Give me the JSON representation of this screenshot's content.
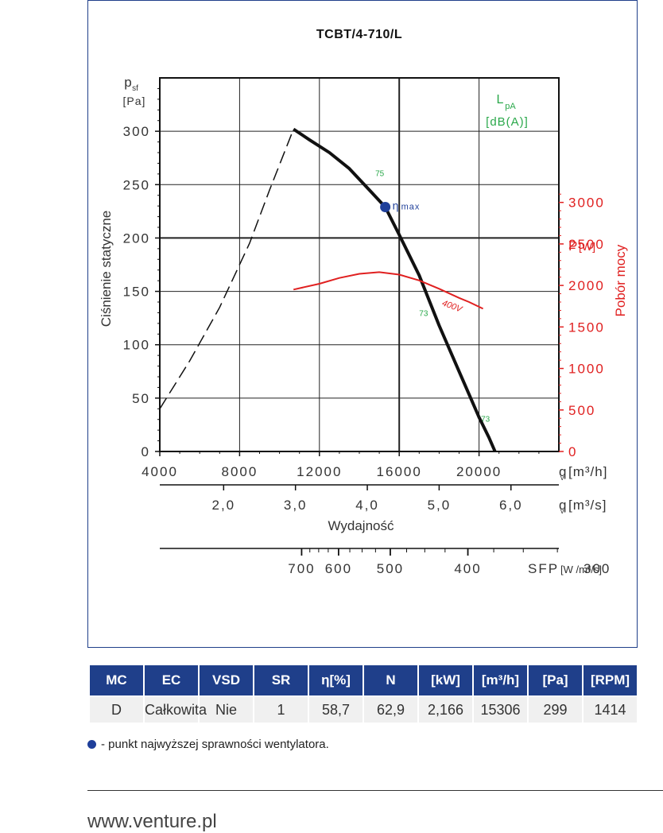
{
  "chart_data": {
    "type": "line",
    "title": "TCBT/4-710/L",
    "ylabel": "Ciśnienie statyczne",
    "y_symbol": "p",
    "y_symbol_sub": "sf",
    "y_unit": "[Pa]",
    "ylim": [
      0,
      350
    ],
    "y_ticks": [
      0,
      50,
      100,
      150,
      200,
      250,
      300
    ],
    "y_tick_labels": [
      "0",
      "50",
      "100",
      "150",
      "200",
      "250",
      "300"
    ],
    "xlim": [
      4000,
      24000
    ],
    "x_ticks": [
      4000,
      8000,
      12000,
      16000,
      20000
    ],
    "x_tick_labels": [
      "4000",
      "8000",
      "12000",
      "16000",
      "20000"
    ],
    "x_unit_symbol": "q",
    "x_unit_sub": "v",
    "x_unit": "[m³/h]",
    "x2_ticks": [
      2.0,
      3.0,
      4.0,
      5.0,
      6.0
    ],
    "x2_tick_labels": [
      "2,0",
      "3,0",
      "4,0",
      "5,0",
      "6,0"
    ],
    "x2_unit": "[m³/s]",
    "xlabel": "Wydajność",
    "sfp_ticks": [
      700,
      600,
      500,
      400,
      300
    ],
    "sfp_tick_labels": [
      "700",
      "600",
      "500",
      "400",
      "300"
    ],
    "sfp_label": "SFP",
    "sfp_unit": "[W /m³/s]",
    "y2_label": "Pobór mocy",
    "y2_symbol": "P",
    "y2_unit": "[W]",
    "y2lim": [
      0,
      4500
    ],
    "y2_ticks": [
      0,
      500,
      1000,
      1500,
      2000,
      2500,
      3000
    ],
    "y2_tick_labels": [
      "0",
      "500",
      "1000",
      "1500",
      "2000",
      "2500",
      "3000"
    ],
    "lpa_label": "L",
    "lpa_sub": "pA",
    "lpa_unit": "[dB(A)]",
    "grid": true,
    "series": [
      {
        "kind": "pressure-stable",
        "color": "#111111",
        "x": [
          10700,
          11500,
          12500,
          13500,
          14500,
          15300,
          16000,
          17000,
          18000,
          19000,
          20000,
          20500,
          20800
        ],
        "y": [
          302,
          292,
          280,
          265,
          245,
          229,
          203,
          165,
          118,
          75,
          32,
          13,
          0
        ]
      },
      {
        "kind": "pressure-unstable",
        "color": "#111111",
        "x": [
          4000,
          5500,
          7000,
          8500,
          9500,
          10700
        ],
        "y": [
          40,
          85,
          135,
          195,
          245,
          302
        ]
      },
      {
        "name": "400V",
        "kind": "power",
        "color": "#e02020",
        "x": [
          10700,
          12000,
          13000,
          14000,
          15000,
          16000,
          17000,
          18000,
          19000,
          19500,
          20200
        ],
        "y": [
          1950,
          2020,
          2090,
          2140,
          2160,
          2130,
          2060,
          1960,
          1850,
          1800,
          1720
        ]
      }
    ],
    "eta_max": {
      "x": 15300,
      "y": 229,
      "label": "η",
      "sub": "max",
      "color": "#1f3f9a"
    },
    "sound_labels": [
      {
        "text": "75",
        "x": 14800,
        "y": 258
      },
      {
        "text": "73",
        "x": 17000,
        "y": 127
      },
      {
        "text": "73",
        "x": 20100,
        "y": 28
      }
    ],
    "power_curve_label": "400V"
  },
  "table": {
    "headers": [
      "MC",
      "EC",
      "VSD",
      "SR",
      "η[%]",
      "N",
      "[kW]",
      "[m³/h]",
      "[Pa]",
      "[RPM]"
    ],
    "row": [
      "D",
      "Całkowita",
      "Nie",
      "1",
      "58,7",
      "62,9",
      "2,166",
      "15306",
      "299",
      "1414"
    ],
    "header_color": "#1f3f8a"
  },
  "legend_note": "- punkt najwyższej sprawności wentylatora.",
  "footer_url": "www.venture.pl"
}
